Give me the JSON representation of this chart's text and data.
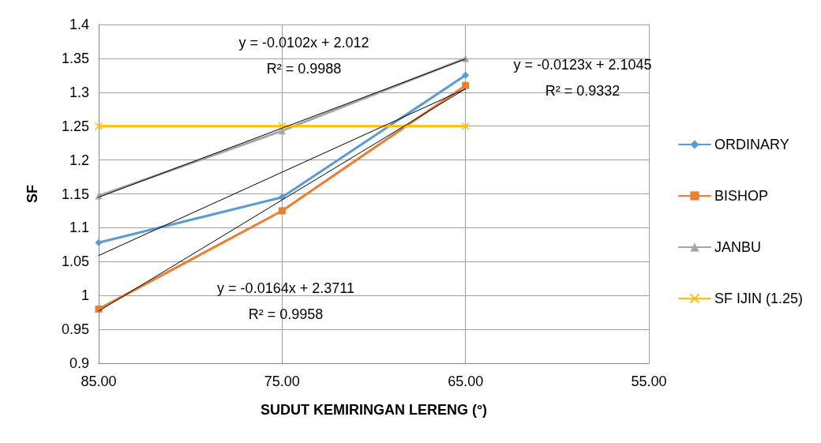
{
  "chart_data": {
    "type": "line",
    "xlabel": "SUDUT KEMIRINGAN LERENG (°)",
    "ylabel": "SF",
    "xlim": [
      85,
      55
    ],
    "xticks": [
      {
        "value": 85,
        "label": "85.00"
      },
      {
        "value": 75,
        "label": "75.00"
      },
      {
        "value": 65,
        "label": "65.00"
      },
      {
        "value": 55,
        "label": "55.00"
      }
    ],
    "ylim": [
      0.9,
      1.4
    ],
    "yticks": [
      0.9,
      0.95,
      1,
      1.05,
      1.1,
      1.15,
      1.2,
      1.25,
      1.3,
      1.35,
      1.4
    ],
    "grid": true,
    "legend": "right",
    "line_style": "solid",
    "series": [
      {
        "name": "ORDINARY",
        "color": "#5b9bd5",
        "marker": "diamond",
        "x": [
          85,
          75,
          65
        ],
        "values": [
          1.078,
          1.145,
          1.325
        ]
      },
      {
        "name": "BISHOP",
        "color": "#ed7d31",
        "marker": "square",
        "x": [
          85,
          75,
          65
        ],
        "values": [
          0.98,
          1.125,
          1.31
        ]
      },
      {
        "name": "JANBU",
        "color": "#a5a5a5",
        "marker": "triangle",
        "x": [
          85,
          75,
          65
        ],
        "values": [
          1.147,
          1.243,
          1.35
        ]
      },
      {
        "name": "SF IJIN (1.25)",
        "color": "#ffc000",
        "marker": "cross",
        "x": [
          85,
          75,
          65
        ],
        "values": [
          1.25,
          1.25,
          1.25
        ]
      },
      {
        "color": "#000000",
        "marker": "none",
        "x": [
          85,
          65
        ],
        "values": [
          1.145,
          1.349
        ]
      },
      {
        "color": "#000000",
        "marker": "none",
        "x": [
          85,
          65
        ],
        "values": [
          1.059,
          1.305
        ]
      },
      {
        "color": "#000000",
        "marker": "none",
        "x": [
          85,
          65
        ],
        "values": [
          0.977,
          1.305
        ]
      }
    ],
    "annotations": [
      "y = -0.0102x + 2.012\nR² = 0.9988",
      "y = -0.0123x + 2.1045\nR² = 0.9332",
      "y = -0.0164x + 2.3711\nR² = 0.9958"
    ]
  }
}
